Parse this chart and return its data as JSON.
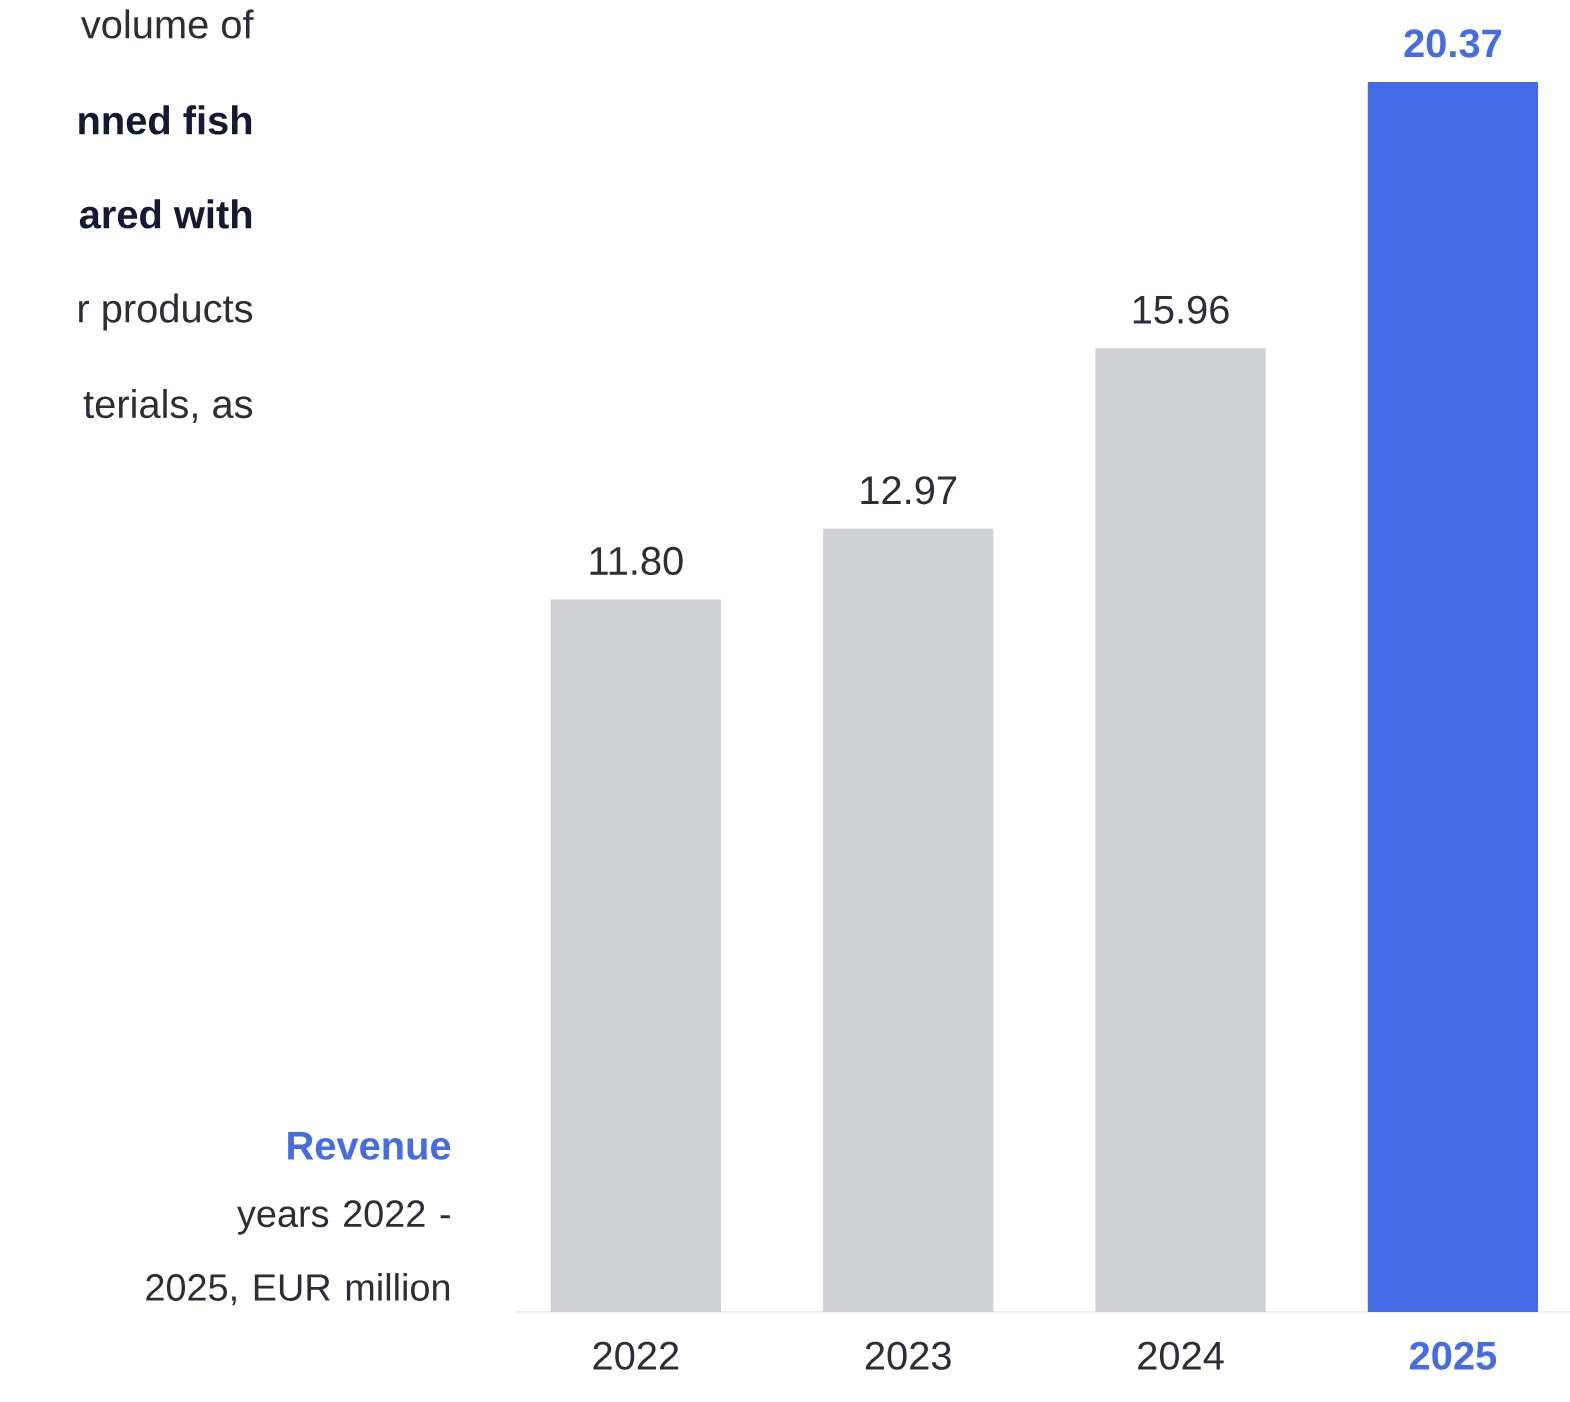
{
  "chart_data": {
    "type": "bar",
    "title": "Revenue",
    "subtitle": "years 2022 - 2025, EUR million",
    "categories": [
      "2022",
      "2023",
      "2024",
      "2025"
    ],
    "values": [
      11.8,
      12.97,
      15.96,
      20.37
    ],
    "value_labels": [
      "11.80",
      "12.97",
      "15.96",
      "20.37"
    ],
    "colors": [
      "#cfd0d4",
      "#cfd0d4",
      "#cfd0d4",
      "#446ce6"
    ],
    "annotations": [
      "volume of",
      "nned fish",
      "ared with",
      "r products",
      "terials,  as"
    ]
  }
}
